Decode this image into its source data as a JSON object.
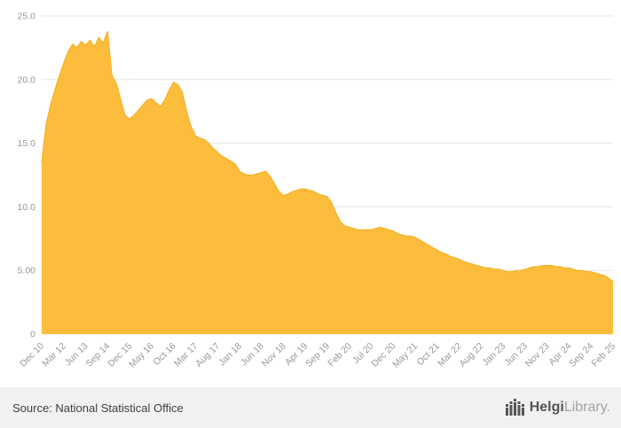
{
  "footer": {
    "source": "Source: National Statistical Office",
    "logo_bold": "Helgi",
    "logo_light": "Library."
  },
  "chart_data": {
    "type": "area",
    "title": "",
    "xlabel": "",
    "ylabel": "",
    "ylim": [
      0,
      25
    ],
    "grid": "horizontal",
    "legend": "none",
    "y_ticks": {
      "values": [
        0,
        5,
        10,
        15,
        20,
        25
      ],
      "labels": [
        "0",
        "5.00",
        "10.0",
        "15.0",
        "20.0",
        "25.0"
      ]
    },
    "x_tick_labels": [
      "Dec 10",
      "Mar 12",
      "Jun 13",
      "Sep 14",
      "Dec 15",
      "May 16",
      "Oct 16",
      "Mar 17",
      "Aug 17",
      "Jan 18",
      "Jun 18",
      "Nov 18",
      "Apr 19",
      "Sep 19",
      "Feb 20",
      "Jul 20",
      "Dec 20",
      "May 21",
      "Oct 21",
      "Mar 22",
      "Aug 22",
      "Jan 23",
      "Jun 23",
      "Nov 23",
      "Apr 24",
      "Sep 24",
      "Feb 25"
    ],
    "x_tick_indices": [
      0,
      5,
      10,
      15,
      20,
      25,
      30,
      35,
      40,
      45,
      50,
      55,
      60,
      65,
      70,
      75,
      80,
      85,
      90,
      95,
      100,
      105,
      110,
      115,
      120,
      125,
      130
    ],
    "values": [
      13.5,
      16.5,
      18.0,
      19.2,
      20.3,
      21.3,
      22.2,
      22.8,
      22.5,
      23.0,
      22.7,
      23.1,
      22.6,
      23.3,
      22.9,
      23.8,
      20.3,
      19.7,
      18.4,
      17.2,
      16.9,
      17.2,
      17.6,
      18.0,
      18.4,
      18.5,
      18.2,
      17.9,
      18.4,
      19.2,
      19.8,
      19.6,
      19.0,
      17.5,
      16.3,
      15.6,
      15.4,
      15.3,
      15.0,
      14.6,
      14.3,
      14.0,
      13.8,
      13.6,
      13.4,
      12.8,
      12.6,
      12.5,
      12.5,
      12.6,
      12.7,
      12.8,
      12.4,
      11.8,
      11.2,
      10.9,
      11.0,
      11.2,
      11.3,
      11.4,
      11.4,
      11.3,
      11.2,
      11.0,
      10.9,
      10.8,
      10.3,
      9.5,
      8.8,
      8.5,
      8.4,
      8.3,
      8.2,
      8.2,
      8.2,
      8.2,
      8.3,
      8.4,
      8.3,
      8.2,
      8.1,
      7.9,
      7.8,
      7.7,
      7.7,
      7.6,
      7.4,
      7.2,
      7.0,
      6.8,
      6.6,
      6.4,
      6.3,
      6.1,
      6.0,
      5.9,
      5.7,
      5.6,
      5.5,
      5.4,
      5.3,
      5.2,
      5.2,
      5.1,
      5.1,
      5.0,
      4.9,
      4.9,
      5.0,
      5.0,
      5.1,
      5.2,
      5.3,
      5.3,
      5.4,
      5.4,
      5.4,
      5.3,
      5.3,
      5.2,
      5.2,
      5.1,
      5.0,
      5.0,
      4.9,
      4.9,
      4.8,
      4.7,
      4.6,
      4.4,
      4.1
    ],
    "colors": {
      "area": "#FBBD3B",
      "area_edge": "#F5AC1E",
      "grid": "#E5E5E4",
      "axis_text": "#999999"
    }
  }
}
